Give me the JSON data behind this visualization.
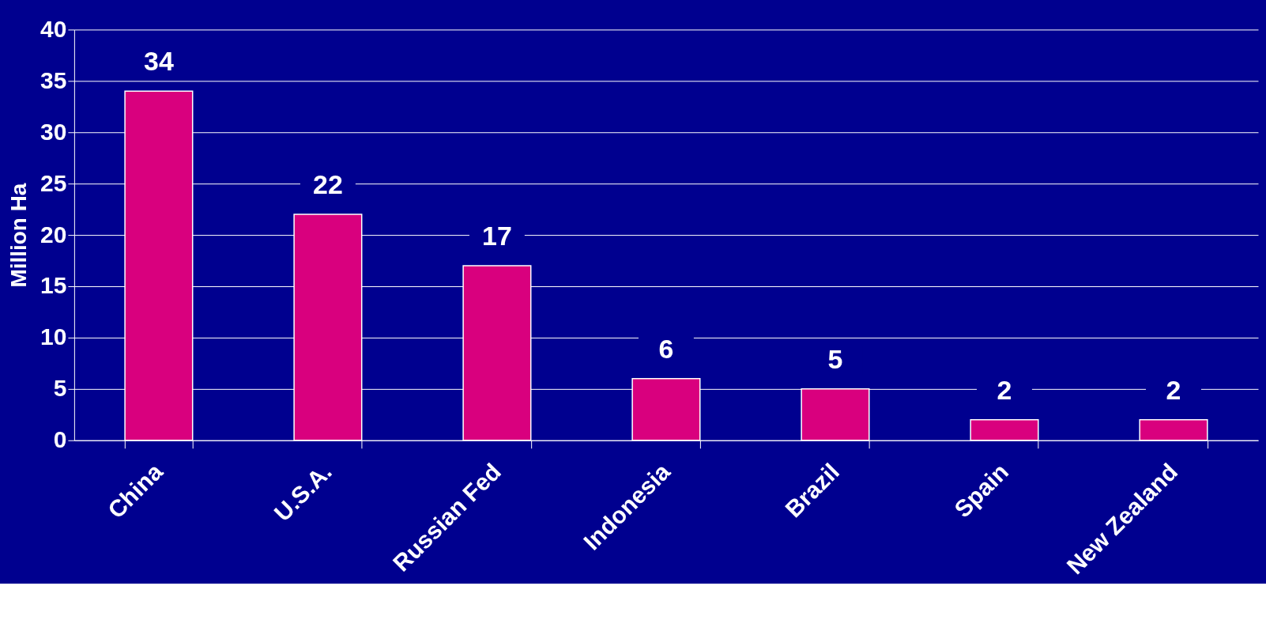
{
  "chart_data": {
    "type": "bar",
    "ylabel": "Million Ha",
    "categories": [
      "China",
      "U.S.A.",
      "Russian Fed",
      "Indonesia",
      "Brazil",
      "Spain",
      "New Zealand"
    ],
    "values": [
      34,
      22,
      17,
      6,
      5,
      2,
      2
    ],
    "color": "#d9007e",
    "ylim": [
      0,
      40
    ],
    "yticks": [
      0,
      5,
      10,
      15,
      20,
      25,
      30,
      35,
      40
    ],
    "grid": "y",
    "data_labels": true
  }
}
